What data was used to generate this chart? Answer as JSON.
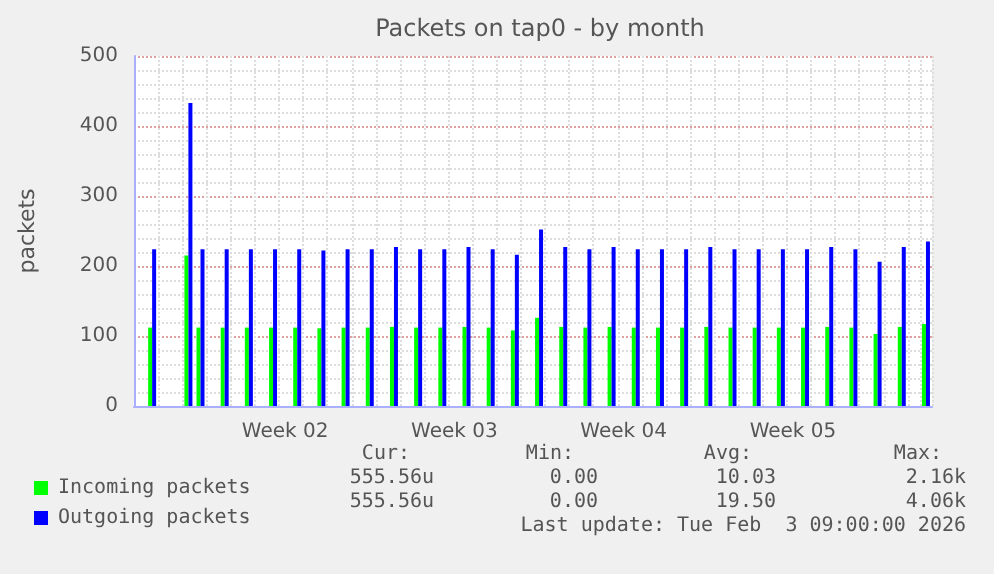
{
  "chart_data": {
    "type": "bar",
    "title": "Packets on tap0 - by month",
    "ylabel": "packets",
    "categories": [
      null,
      null,
      null,
      null,
      null,
      null,
      null,
      null,
      null,
      null,
      null,
      null,
      "Week 02",
      null,
      null,
      null,
      null,
      null,
      null,
      null,
      null,
      null,
      null,
      null,
      null,
      null,
      "Week 03",
      null,
      null,
      null,
      null,
      null,
      null,
      null,
      null,
      null,
      null,
      null,
      null,
      null,
      "Week 04",
      null,
      null,
      null,
      null,
      null,
      null,
      null,
      null,
      null,
      null,
      null,
      null,
      null,
      "Week 05",
      null,
      null,
      null,
      null,
      null,
      null,
      null,
      null,
      null,
      null,
      null
    ],
    "series": [
      {
        "name": "Incoming packets",
        "color": "#00ff00",
        "values": [
          0,
          112,
          0,
          0,
          215,
          112,
          0,
          112,
          0,
          112,
          0,
          112,
          0,
          112,
          0,
          111,
          0,
          112,
          0,
          112,
          0,
          113,
          0,
          112,
          0,
          112,
          0,
          113,
          0,
          112,
          0,
          108,
          0,
          126,
          0,
          113,
          0,
          112,
          0,
          113,
          0,
          112,
          0,
          112,
          0,
          112,
          0,
          113,
          0,
          112,
          0,
          112,
          0,
          112,
          0,
          112,
          0,
          113,
          0,
          112,
          0,
          103,
          0,
          113,
          0,
          117
        ]
      },
      {
        "name": "Outgoing packets",
        "color": "#0000ff",
        "values": [
          0,
          224,
          0,
          0,
          433,
          224,
          0,
          224,
          0,
          224,
          0,
          224,
          0,
          224,
          0,
          222,
          0,
          224,
          0,
          224,
          0,
          227,
          0,
          224,
          0,
          224,
          0,
          227,
          0,
          224,
          0,
          216,
          0,
          252,
          0,
          227,
          0,
          224,
          0,
          227,
          0,
          224,
          0,
          224,
          0,
          224,
          0,
          227,
          0,
          224,
          0,
          224,
          0,
          224,
          0,
          224,
          0,
          227,
          0,
          224,
          0,
          206,
          0,
          227,
          0,
          235
        ]
      }
    ],
    "ylim": [
      0,
      500
    ],
    "yticks": [
      0,
      100,
      200,
      300,
      400,
      500
    ],
    "grid": true,
    "legend": "bottom left",
    "annotations": [
      "Cur:",
      "Min:",
      "Avg:",
      "Max:",
      "555.56u",
      "0.00",
      "10.03",
      "2.16k",
      "555.56u",
      "0.00",
      "19.50",
      "4.06k",
      "Last update: Tue Feb  3 09:00:00 2026"
    ]
  }
}
